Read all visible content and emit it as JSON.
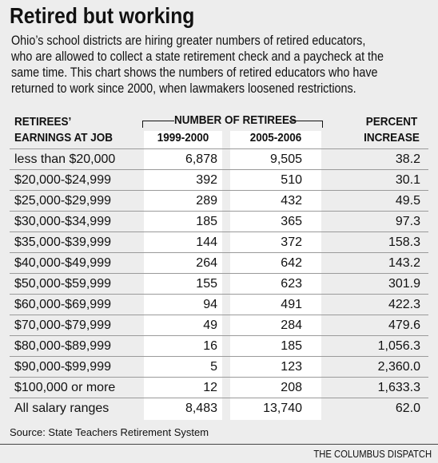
{
  "header": {
    "title": "Retired but working",
    "intro": [
      "Ohio’s school districts are hiring greater numbers of retired educators,",
      "who are allowed to collect a state retirement check and a paycheck at the",
      "same time. This chart shows the numbers of retired educators who have",
      "returned to work since 2000, when lawmakers loosened restrictions."
    ]
  },
  "table": {
    "columns": {
      "earnings": [
        "RETIREES’",
        "EARNINGS AT JOB"
      ],
      "group": "NUMBER OF RETIREES",
      "years": [
        "1999-2000",
        "2005-2006"
      ],
      "percent": [
        "PERCENT",
        "INCREASE"
      ]
    },
    "rows": [
      [
        "less than $20,000",
        "6,878",
        "9,505",
        "38.2"
      ],
      [
        "$20,000-$24,999",
        "392",
        "510",
        "30.1"
      ],
      [
        "$25,000-$29,999",
        "289",
        "432",
        "49.5"
      ],
      [
        "$30,000-$34,999",
        "185",
        "365",
        "97.3"
      ],
      [
        "$35,000-$39,999",
        "144",
        "372",
        "158.3"
      ],
      [
        "$40,000-$49,999",
        "264",
        "642",
        "143.2"
      ],
      [
        "$50,000-$59,999",
        "155",
        "623",
        "301.9"
      ],
      [
        "$60,000-$69,999",
        "94",
        "491",
        "422.3"
      ],
      [
        "$70,000-$79,999",
        "49",
        "284",
        "479.6"
      ],
      [
        "$80,000-$89,999",
        "16",
        "185",
        "1,056.3"
      ],
      [
        "$90,000-$99,999",
        "5",
        "123",
        "2,360.0"
      ],
      [
        "$100,000 or more",
        "12",
        "208",
        "1,633.3"
      ],
      [
        "All salary ranges",
        "8,483",
        "13,740",
        "62.0"
      ]
    ]
  },
  "footer": {
    "source": "Source: State Teachers Retirement System",
    "credit": "THE COLUMBUS DISPATCH"
  }
}
